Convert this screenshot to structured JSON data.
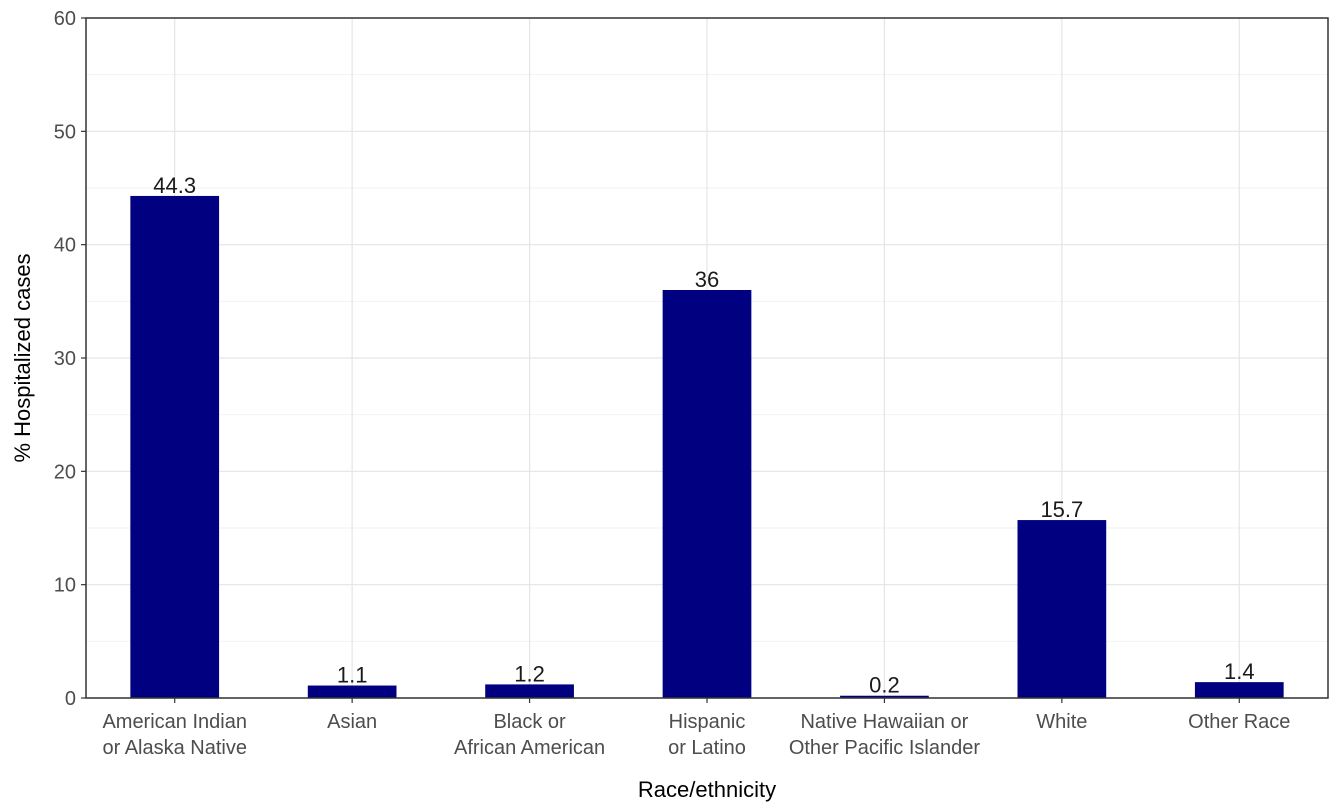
{
  "chart_data": {
    "type": "bar",
    "title": "",
    "xlabel": "Race/ethnicity",
    "ylabel": "% Hospitalized cases",
    "categories": [
      [
        "American Indian",
        "or Alaska Native"
      ],
      [
        "Asian"
      ],
      [
        "Black or",
        "African American"
      ],
      [
        "Hispanic",
        "or Latino"
      ],
      [
        "Native Hawaiian or",
        "Other Pacific Islander"
      ],
      [
        "White"
      ],
      [
        "Other Race"
      ]
    ],
    "values": [
      44.3,
      1.1,
      1.2,
      36,
      0.2,
      15.7,
      1.4
    ],
    "data_labels": [
      "44.3",
      "1.1",
      "1.2",
      "36",
      "0.2",
      "15.7",
      "1.4"
    ],
    "ylim": [
      0,
      60
    ],
    "yticks": [
      0,
      10,
      20,
      30,
      40,
      50,
      60
    ],
    "grid": true,
    "legend": "none",
    "colors": {
      "bar": "#000080",
      "grid_major": "#e5e5e5",
      "grid_minor": "#f2f2f2",
      "panel_border": "#333333",
      "tick_text": "#4d4d4d"
    }
  }
}
